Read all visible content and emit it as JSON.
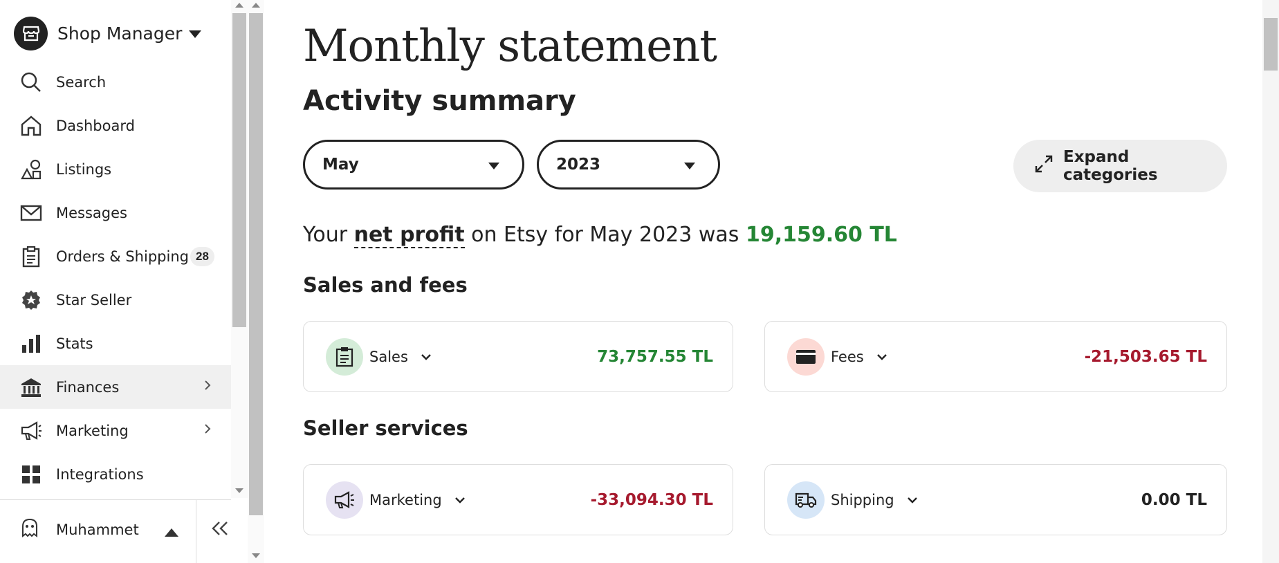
{
  "sidebar": {
    "shop_title": "Shop Manager",
    "items": [
      {
        "label": "Search",
        "icon": "search-icon"
      },
      {
        "label": "Dashboard",
        "icon": "home-icon"
      },
      {
        "label": "Listings",
        "icon": "shapes-icon"
      },
      {
        "label": "Messages",
        "icon": "envelope-icon"
      },
      {
        "label": "Orders & Shipping",
        "icon": "clipboard-icon",
        "badge": "28"
      },
      {
        "label": "Star Seller",
        "icon": "star-badge-icon"
      },
      {
        "label": "Stats",
        "icon": "bar-chart-icon"
      },
      {
        "label": "Finances",
        "icon": "bank-icon",
        "active": true
      },
      {
        "label": "Marketing",
        "icon": "megaphone-icon"
      },
      {
        "label": "Integrations",
        "icon": "grid-icon"
      }
    ],
    "user_name": "Muhammet"
  },
  "main": {
    "page_title": "Monthly statement",
    "section_title": "Activity summary",
    "month_select": "May",
    "year_select": "2023",
    "expand_label": "Expand categories",
    "profit": {
      "prefix": "Your",
      "net_profit": "net profit",
      "middle": "on Etsy for May 2023 was",
      "amount": "19,159.60 TL"
    },
    "sales_and_fees_title": "Sales and fees",
    "seller_services_title": "Seller services",
    "cards": {
      "sales": {
        "label": "Sales",
        "value": "73,757.55 TL"
      },
      "fees": {
        "label": "Fees",
        "value": "-21,503.65 TL"
      },
      "marketing": {
        "label": "Marketing",
        "value": "-33,094.30 TL"
      },
      "shipping": {
        "label": "Shipping",
        "value": "0.00 TL"
      }
    }
  },
  "colors": {
    "positive": "#258635",
    "negative": "#a61a2e",
    "sales_icon_bg": "#d4ecd8",
    "fees_icon_bg": "#fcd9d4",
    "marketing_icon_bg": "#e6e2f2",
    "shipping_icon_bg": "#d6e6f7"
  }
}
